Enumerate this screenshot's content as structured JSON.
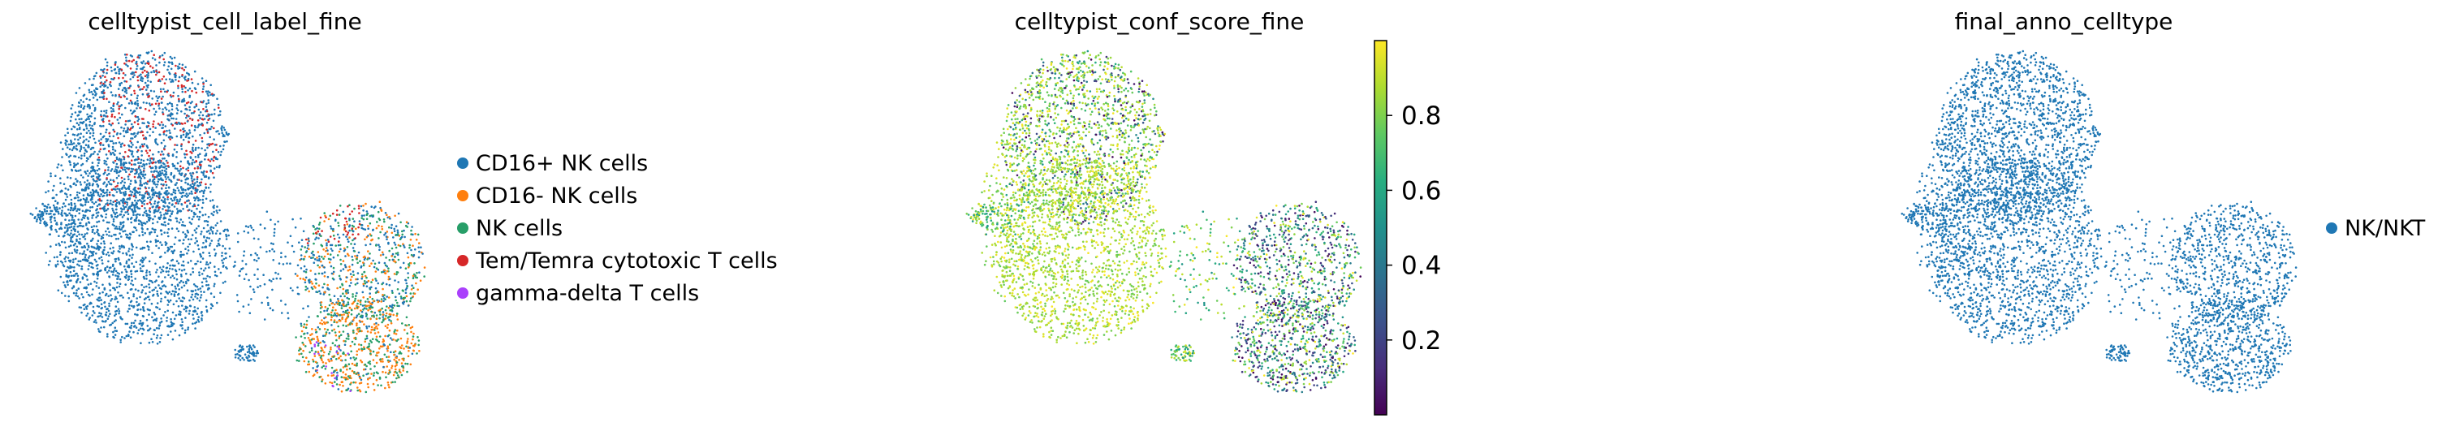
{
  "figure": {
    "panels": [
      {
        "title": "celltypist_cell_label_fine",
        "legend": [
          {
            "label": "CD16+ NK cells",
            "color": "#1f77b4"
          },
          {
            "label": "CD16- NK cells",
            "color": "#ff7f0e"
          },
          {
            "label": "NK cells",
            "color": "#279e68"
          },
          {
            "label": "Tem/Temra cytotoxic T cells",
            "color": "#d62728"
          },
          {
            "label": "gamma-delta T cells",
            "color": "#aa40fc"
          }
        ]
      },
      {
        "title": "celltypist_conf_score_fine",
        "colorbar": {
          "colormap": "viridis",
          "range": [
            0.0,
            1.0
          ],
          "ticks": [
            {
              "value": 0.2,
              "label": "0.2"
            },
            {
              "value": 0.4,
              "label": "0.4"
            },
            {
              "value": 0.6,
              "label": "0.6"
            },
            {
              "value": 0.8,
              "label": "0.8"
            }
          ]
        }
      },
      {
        "title": "final_anno_celltype",
        "legend": [
          {
            "label": "NK/NKT",
            "color": "#1f77b4"
          }
        ]
      }
    ]
  },
  "chart_data": [
    {
      "type": "scatter",
      "title": "celltypist_cell_label_fine",
      "xlabel": "",
      "ylabel": "",
      "axes_visible": false,
      "color_by": "categorical",
      "series": [
        {
          "name": "CD16+ NK cells",
          "color": "#1f77b4"
        },
        {
          "name": "CD16- NK cells",
          "color": "#ff7f0e"
        },
        {
          "name": "NK cells",
          "color": "#279e68"
        },
        {
          "name": "Tem/Temra cytotoxic T cells",
          "color": "#d62728"
        },
        {
          "name": "gamma-delta T cells",
          "color": "#aa40fc"
        }
      ],
      "legend_position": "right"
    },
    {
      "type": "scatter",
      "title": "celltypist_conf_score_fine",
      "xlabel": "",
      "ylabel": "",
      "axes_visible": false,
      "color_by": "continuous",
      "colormap": "viridis",
      "color_range": [
        0.0,
        1.0
      ],
      "colorbar_ticks": [
        0.2,
        0.4,
        0.6,
        0.8
      ]
    },
    {
      "type": "scatter",
      "title": "final_anno_celltype",
      "xlabel": "",
      "ylabel": "",
      "axes_visible": false,
      "color_by": "categorical",
      "series": [
        {
          "name": "NK/NKT",
          "color": "#1f77b4"
        }
      ],
      "legend_position": "right"
    }
  ]
}
